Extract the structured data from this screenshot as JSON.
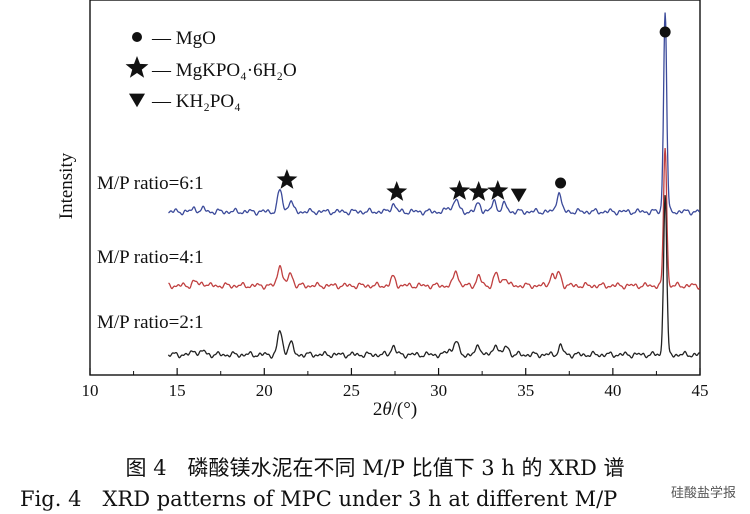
{
  "chart_data": {
    "type": "line",
    "xlabel_prefix": "2",
    "xlabel_var": "θ",
    "xlabel_unit": "/(°)",
    "ylabel": "Intensity",
    "xlim": [
      10,
      45
    ],
    "xticks": [
      10,
      15,
      20,
      25,
      30,
      35,
      40,
      45
    ],
    "legend": {
      "placement": "top-left",
      "entries": [
        {
          "marker": "circle",
          "label": "— MgO"
        },
        {
          "marker": "star",
          "label": "— MgKPO₄·6H₂O"
        },
        {
          "marker": "triangle-down",
          "label": "— KH₂PO₄"
        }
      ]
    },
    "series": [
      {
        "name": "M/P ratio=6:1",
        "color": "#3b4a9a",
        "offset": 2.0,
        "peaks": [
          [
            16.0,
            0.08
          ],
          [
            16.5,
            0.06
          ],
          [
            20.9,
            0.5
          ],
          [
            21.5,
            0.25
          ],
          [
            27.4,
            0.18
          ],
          [
            30.6,
            0.1
          ],
          [
            31.0,
            0.3
          ],
          [
            32.3,
            0.2
          ],
          [
            33.2,
            0.25
          ],
          [
            33.8,
            0.18
          ],
          [
            36.9,
            0.45
          ],
          [
            43.0,
            4.6
          ]
        ]
      },
      {
        "name": "M/P ratio=4:1",
        "color": "#c04040",
        "offset": 1.0,
        "peaks": [
          [
            16.0,
            0.1
          ],
          [
            16.5,
            0.07
          ],
          [
            20.9,
            0.5
          ],
          [
            21.5,
            0.3
          ],
          [
            27.4,
            0.2
          ],
          [
            31.0,
            0.35
          ],
          [
            32.3,
            0.22
          ],
          [
            33.3,
            0.28
          ],
          [
            33.8,
            0.2
          ],
          [
            36.5,
            0.25
          ],
          [
            36.9,
            0.3
          ],
          [
            43.0,
            3.2
          ]
        ]
      },
      {
        "name": "M/P ratio=2:1",
        "color": "#222222",
        "offset": 0.0,
        "peaks": [
          [
            16.0,
            0.1
          ],
          [
            16.5,
            0.08
          ],
          [
            20.9,
            0.55
          ],
          [
            21.5,
            0.3
          ],
          [
            27.4,
            0.2
          ],
          [
            30.6,
            0.12
          ],
          [
            31.0,
            0.32
          ],
          [
            32.3,
            0.22
          ],
          [
            33.3,
            0.25
          ],
          [
            33.9,
            0.2
          ],
          [
            37.0,
            0.2
          ],
          [
            43.0,
            3.7
          ]
        ]
      }
    ],
    "annotations": [
      {
        "marker": "star",
        "x": 21.3
      },
      {
        "marker": "star",
        "x": 27.6
      },
      {
        "marker": "star",
        "x": 31.2
      },
      {
        "marker": "star",
        "x": 32.3
      },
      {
        "marker": "star",
        "x": 33.4
      },
      {
        "marker": "triangle-down",
        "x": 34.6
      },
      {
        "marker": "circle",
        "x": 37.0
      },
      {
        "marker": "circle",
        "x": 43.0
      }
    ]
  },
  "caption": {
    "cn": "图 4　磷酸镁水泥在不同 M/P 比值下 3 h 的 XRD 谱",
    "en": "Fig. 4　XRD patterns of MPC under 3 h at different M/P"
  },
  "watermark": "硅酸盐学报"
}
